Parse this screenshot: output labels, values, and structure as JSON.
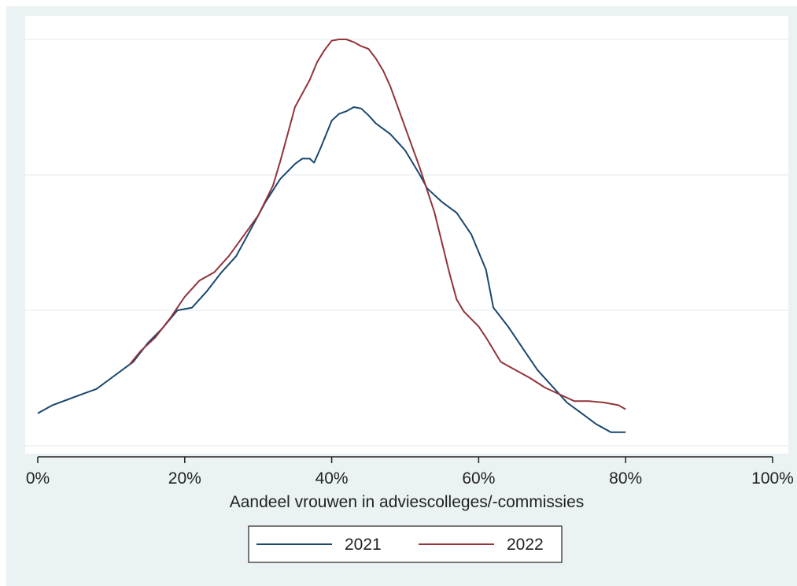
{
  "chart_data": {
    "type": "line",
    "title": "",
    "xlabel": "Aandeel vrouwen in adviescolleges/-commissies",
    "ylabel": "",
    "xlim": [
      0,
      100
    ],
    "ylim": [
      0,
      3
    ],
    "x_ticks": [
      0,
      20,
      40,
      60,
      80,
      100
    ],
    "x_tick_labels": [
      "0%",
      "20%",
      "40%",
      "60%",
      "80%",
      "100%"
    ],
    "y_gridlines": [
      0,
      1,
      2,
      3
    ],
    "grid": true,
    "legend_position": "bottom",
    "series": [
      {
        "name": "2021",
        "color": "#1a476f",
        "points": [
          [
            0,
            0.24
          ],
          [
            2,
            0.3
          ],
          [
            4,
            0.34
          ],
          [
            6,
            0.38
          ],
          [
            8,
            0.42
          ],
          [
            10,
            0.5
          ],
          [
            12,
            0.58
          ],
          [
            13,
            0.62
          ],
          [
            15,
            0.76
          ],
          [
            17,
            0.87
          ],
          [
            19,
            1.0
          ],
          [
            21,
            1.02
          ],
          [
            23,
            1.14
          ],
          [
            25,
            1.28
          ],
          [
            27,
            1.4
          ],
          [
            29,
            1.6
          ],
          [
            31,
            1.8
          ],
          [
            33,
            1.97
          ],
          [
            35,
            2.08
          ],
          [
            36,
            2.12
          ],
          [
            37,
            2.12
          ],
          [
            37.6,
            2.09
          ],
          [
            38.5,
            2.2
          ],
          [
            40,
            2.4
          ],
          [
            41,
            2.45
          ],
          [
            42,
            2.47
          ],
          [
            43,
            2.5
          ],
          [
            44,
            2.49
          ],
          [
            45,
            2.44
          ],
          [
            46,
            2.38
          ],
          [
            48,
            2.3
          ],
          [
            50,
            2.18
          ],
          [
            52,
            2.0
          ],
          [
            53,
            1.9
          ],
          [
            55,
            1.8
          ],
          [
            57,
            1.72
          ],
          [
            59,
            1.56
          ],
          [
            61,
            1.3
          ],
          [
            62,
            1.02
          ],
          [
            64,
            0.88
          ],
          [
            66,
            0.72
          ],
          [
            68,
            0.56
          ],
          [
            70,
            0.44
          ],
          [
            72,
            0.32
          ],
          [
            74,
            0.24
          ],
          [
            76,
            0.16
          ],
          [
            78,
            0.1
          ],
          [
            79,
            0.1
          ],
          [
            80,
            0.1
          ]
        ]
      },
      {
        "name": "2022",
        "color": "#90353b",
        "points": [
          [
            12.5,
            0.6
          ],
          [
            14,
            0.7
          ],
          [
            16,
            0.8
          ],
          [
            18,
            0.94
          ],
          [
            20,
            1.1
          ],
          [
            22,
            1.22
          ],
          [
            24,
            1.28
          ],
          [
            26,
            1.4
          ],
          [
            28,
            1.55
          ],
          [
            30,
            1.7
          ],
          [
            32,
            1.92
          ],
          [
            33,
            2.1
          ],
          [
            34,
            2.3
          ],
          [
            35,
            2.5
          ],
          [
            36,
            2.6
          ],
          [
            37,
            2.7
          ],
          [
            38,
            2.83
          ],
          [
            39,
            2.92
          ],
          [
            40,
            2.99
          ],
          [
            41,
            3.0
          ],
          [
            42,
            3.0
          ],
          [
            43,
            2.98
          ],
          [
            44,
            2.95
          ],
          [
            45,
            2.93
          ],
          [
            46,
            2.86
          ],
          [
            47,
            2.77
          ],
          [
            48,
            2.65
          ],
          [
            50,
            2.35
          ],
          [
            52,
            2.05
          ],
          [
            54,
            1.72
          ],
          [
            56,
            1.28
          ],
          [
            57,
            1.08
          ],
          [
            58,
            0.99
          ],
          [
            60,
            0.88
          ],
          [
            61,
            0.8
          ],
          [
            63,
            0.62
          ],
          [
            65,
            0.56
          ],
          [
            67,
            0.5
          ],
          [
            69,
            0.43
          ],
          [
            71,
            0.38
          ],
          [
            73,
            0.33
          ],
          [
            75,
            0.33
          ],
          [
            77,
            0.32
          ],
          [
            79,
            0.3
          ],
          [
            80,
            0.27
          ]
        ]
      }
    ]
  },
  "legend": {
    "items": [
      {
        "label": "2021",
        "color": "#1a476f"
      },
      {
        "label": "2022",
        "color": "#90353b"
      }
    ]
  }
}
